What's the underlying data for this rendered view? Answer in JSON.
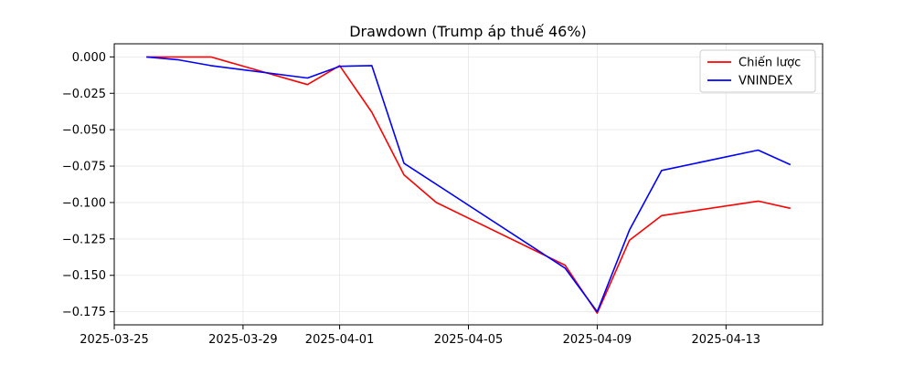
{
  "chart_data": {
    "type": "line",
    "title": "Drawdown (Trump áp thuế 46%)",
    "xlabel": "",
    "ylabel": "",
    "x_axis_type": "date",
    "xlim": [
      "2025-03-25",
      "2025-04-16"
    ],
    "ylim": [
      -0.184,
      0.009
    ],
    "x_ticks": [
      "2025-03-25",
      "2025-03-29",
      "2025-04-01",
      "2025-04-05",
      "2025-04-09",
      "2025-04-13"
    ],
    "y_ticks": [
      0.0,
      -0.025,
      -0.05,
      -0.075,
      -0.1,
      -0.125,
      -0.15,
      -0.175
    ],
    "y_tick_labels": [
      "0.000",
      "−0.025",
      "−0.050",
      "−0.075",
      "−0.100",
      "−0.125",
      "−0.150",
      "−0.175"
    ],
    "grid": true,
    "legend_position": "top-right",
    "series": [
      {
        "name": "Chiến lược",
        "color": "#ff0000",
        "x": [
          "2025-03-26",
          "2025-03-27",
          "2025-03-28",
          "2025-03-31",
          "2025-04-01",
          "2025-04-02",
          "2025-04-03",
          "2025-04-04",
          "2025-04-08",
          "2025-04-09",
          "2025-04-10",
          "2025-04-11",
          "2025-04-14",
          "2025-04-15"
        ],
        "y": [
          0.0,
          0.0,
          0.0,
          -0.019,
          -0.006,
          -0.038,
          -0.081,
          -0.1,
          -0.143,
          -0.176,
          -0.126,
          -0.109,
          -0.099,
          -0.104
        ]
      },
      {
        "name": "VNINDEX",
        "color": "#0000ff",
        "x": [
          "2025-03-26",
          "2025-03-27",
          "2025-03-28",
          "2025-03-31",
          "2025-04-01",
          "2025-04-02",
          "2025-04-03",
          "2025-04-08",
          "2025-04-09",
          "2025-04-10",
          "2025-04-11",
          "2025-04-14",
          "2025-04-15"
        ],
        "y": [
          0.0,
          -0.002,
          -0.006,
          -0.0145,
          -0.0065,
          -0.006,
          -0.073,
          -0.145,
          -0.175,
          -0.119,
          -0.078,
          -0.064,
          -0.074
        ]
      }
    ]
  }
}
